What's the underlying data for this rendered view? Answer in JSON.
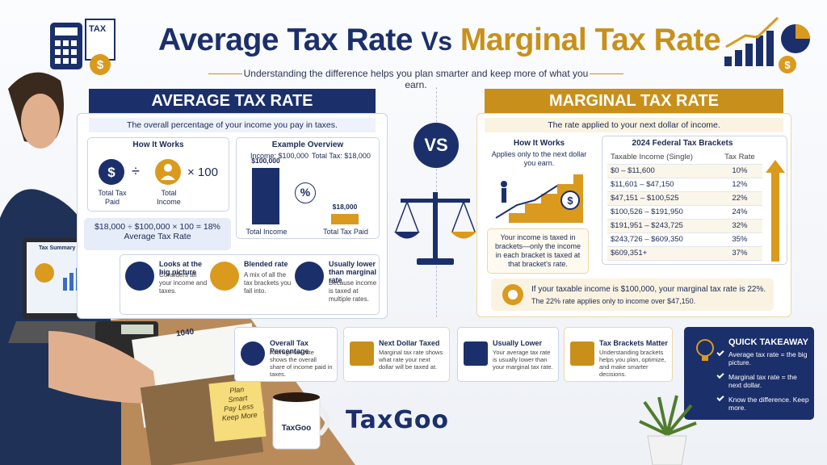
{
  "header": {
    "title_part1": "Average Tax Rate",
    "title_vs": "Vs",
    "title_part2": "Marginal Tax Rate",
    "subtitle": "Understanding the difference helps you plan smarter and keep more of what you earn.",
    "icon_label": "TAX"
  },
  "average": {
    "heading": "AVERAGE TAX RATE",
    "definition": "The overall percentage of your income you pay in taxes.",
    "how_title": "How It Works",
    "formula": {
      "left": "Total Tax Paid",
      "divide": "÷",
      "right": "Total Income",
      "times": "× 100"
    },
    "example": "$18,000 ÷ $100,000 × 100 = 18%",
    "example_label": "Average Tax Rate",
    "overview": {
      "title": "Example Overview",
      "income_label": "Income: $100,000",
      "tax_label": "Total Tax: $18,000",
      "symbol": "%",
      "bars": [
        {
          "name": "Total Income",
          "value": 100000,
          "value_label": "$100,000"
        },
        {
          "name": "Total Tax Paid",
          "value": 18000,
          "value_label": "$18,000"
        }
      ]
    },
    "features": [
      {
        "title": "Looks at the big picture",
        "text": "Considers all your income and taxes."
      },
      {
        "title": "Blended rate",
        "text": "A mix of all the tax brackets you fall into."
      },
      {
        "title": "Usually lower than marginal rate",
        "text": "Because income is taxed at multiple rates."
      }
    ]
  },
  "vs": "VS",
  "marginal": {
    "heading": "MARGINAL TAX RATE",
    "definition": "The rate applied to your next dollar of income.",
    "how_title": "How It Works",
    "how_sub": "Applies only to the next dollar you earn.",
    "how_text": "Your income is taxed in brackets—only the income in each bracket is taxed at that bracket's rate.",
    "brackets": {
      "title": "2024 Federal Tax Brackets",
      "headers": [
        "Taxable Income (Single)",
        "Tax Rate"
      ],
      "rows": [
        [
          "$0 – $11,600",
          "10%"
        ],
        [
          "$11,601 – $47,150",
          "12%"
        ],
        [
          "$47,151 – $100,525",
          "22%"
        ],
        [
          "$100,526 – $191,950",
          "24%"
        ],
        [
          "$191,951 – $243,725",
          "32%"
        ],
        [
          "$243,726 – $609,350",
          "35%"
        ],
        [
          "$609,351+",
          "37%"
        ]
      ]
    },
    "note": "If your taxable income is $100,000, your marginal tax rate is 22%.",
    "note_sub": "The 22% rate applies only to income over $47,150."
  },
  "cards": [
    {
      "title": "Overall Tax Percentage",
      "text": "Average tax rate shows the overall share of income paid in taxes."
    },
    {
      "title": "Next Dollar Taxed",
      "text": "Marginal tax rate shows what rate your next dollar will be taxed at."
    },
    {
      "title": "Usually Lower",
      "text": "Your average tax rate is usually lower than your marginal tax rate."
    },
    {
      "title": "Tax Brackets Matter",
      "text": "Understanding brackets helps you plan, optimize, and make smarter decisions."
    }
  ],
  "takeaway": {
    "title": "QUICK TAKEAWAY",
    "items": [
      "Average tax rate = the big picture.",
      "Marginal tax rate = the next dollar.",
      "Know the difference. Keep more."
    ]
  },
  "logo": "TaxGoo",
  "photo": {
    "laptop_title": "Tax Summary",
    "form": "1040",
    "note": [
      "Plan",
      "Smart",
      "Pay Less",
      "Keep More"
    ],
    "mug": "TaxGoo"
  }
}
